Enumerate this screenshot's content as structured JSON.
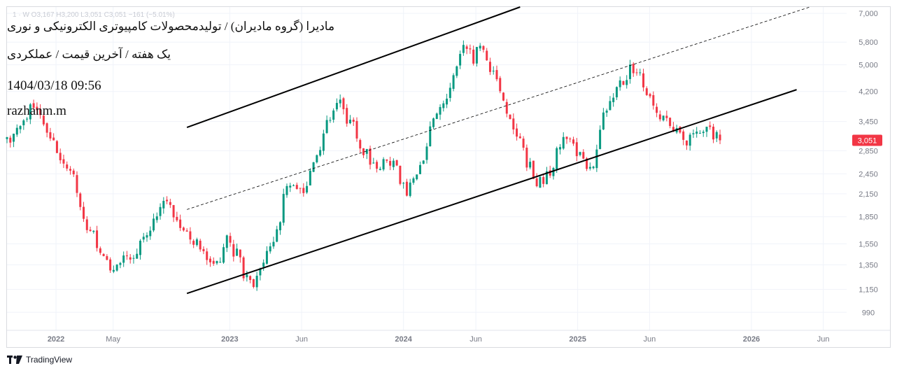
{
  "header": {
    "ohlc_text": "1 · W  O3,167  H3,200  L3,051  C3,051  −161 (−5.01%)",
    "title": "مادیرا (گروه مادیران) / تولیدمحصولات کامپیوتری الکترونیکی و نوری",
    "subtitle": "یک هفته / آخرین قیمت / عملکردی",
    "timestamp": "1404/03/18 09:56",
    "author": "razhanm.m"
  },
  "footer": {
    "brand": "TradingView"
  },
  "colors": {
    "up": "#089981",
    "down": "#f23645",
    "grid": "#f0f3fa",
    "axis_text": "#787b86",
    "price_label_bg": "#f23645",
    "channel": "#000000"
  },
  "chart_data": {
    "type": "candlestick",
    "timeframe": "1W",
    "y_scale": "log",
    "ylim": [
      880,
      7300
    ],
    "y_ticks": [
      "7,000",
      "5,800",
      "5,000",
      "4,200",
      "3,450",
      "2,850",
      "2,450",
      "2,150",
      "1,850",
      "1,550",
      "1,350",
      "1,150",
      "990"
    ],
    "xlim": [
      "2021-09-20",
      "2026-07-20"
    ],
    "x_ticks": [
      {
        "label": "2022",
        "date": "2022-01-01"
      },
      {
        "label": "May",
        "date": "2022-05-01"
      },
      {
        "label": "2023",
        "date": "2023-01-01"
      },
      {
        "label": "Jun",
        "date": "2023-06-01"
      },
      {
        "label": "2024",
        "date": "2024-01-01"
      },
      {
        "label": "Jun",
        "date": "2024-06-01"
      },
      {
        "label": "2025",
        "date": "2025-01-01"
      },
      {
        "label": "Jun",
        "date": "2025-06-01"
      },
      {
        "label": "2026",
        "date": "2026-01-01"
      },
      {
        "label": "Jun",
        "date": "2026-06-01"
      }
    ],
    "last_price": "3,051",
    "last_value": 3051,
    "first_bar": "2021-09-20",
    "key_prices": [
      3000,
      3150,
      3300,
      3500,
      4000,
      3600,
      3200,
      3000,
      2750,
      2600,
      2450,
      2000,
      1800,
      1650,
      1500,
      1400,
      1300,
      1350,
      1450,
      1420,
      1500,
      1650,
      1850,
      1950,
      2000,
      1900,
      1800,
      1700,
      1600,
      1500,
      1350,
      1300,
      1400,
      1600,
      1500,
      1400,
      1250,
      1150,
      1300,
      1450,
      1550,
      1800,
      2150,
      2400,
      2100,
      2300,
      2600,
      2900,
      3400,
      3700,
      3900,
      3600,
      3400,
      3000,
      2800,
      2600,
      2500,
      2700,
      2600,
      2400,
      2200,
      2350,
      2600,
      3000,
      3400,
      3600,
      4000,
      4500,
      5100,
      5600,
      5200,
      5600,
      5300,
      4800,
      4300,
      3800,
      3400,
      3100,
      2700,
      2450,
      2300,
      2400,
      2600,
      3000,
      3100,
      2950,
      2800,
      2600,
      2500,
      3200,
      3800,
      4000,
      4300,
      4600,
      5000,
      4700,
      4300,
      3900,
      3650,
      3450,
      3300,
      3100,
      3000,
      3200,
      3300,
      3400,
      3200,
      3051
    ],
    "channels": [
      {
        "name": "upper",
        "style": "solid",
        "from": {
          "date": "2022-10-03",
          "value": 3320
        },
        "to": {
          "date": "2024-09-02",
          "value": 7300
        }
      },
      {
        "name": "middle",
        "style": "dashed",
        "from": {
          "date": "2022-10-03",
          "value": 1940
        },
        "to": {
          "date": "2026-05-04",
          "value": 7300
        }
      },
      {
        "name": "lower",
        "style": "solid",
        "from": {
          "date": "2022-10-03",
          "value": 1120
        },
        "to": {
          "date": "2026-04-06",
          "value": 4250
        }
      }
    ]
  }
}
